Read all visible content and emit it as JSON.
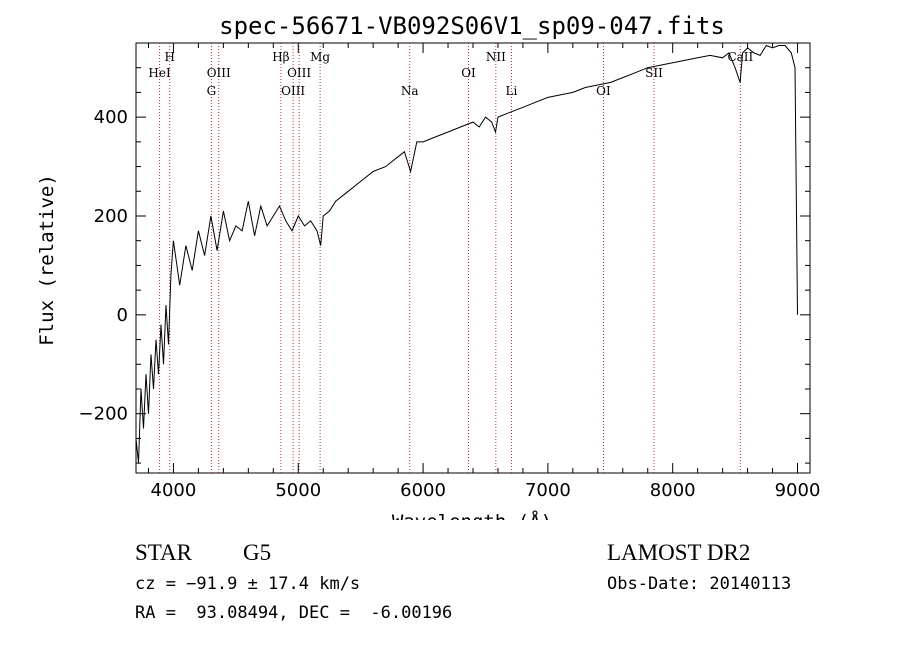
{
  "chart_data": {
    "type": "line",
    "title": "spec-56671-VB092S06V1_sp09-047.fits",
    "xlabel": "Wavelength (Å)",
    "ylabel": "Flux (relative)",
    "xlim": [
      3700,
      9100
    ],
    "ylim": [
      -320,
      550
    ],
    "x_ticks": [
      4000,
      5000,
      6000,
      7000,
      8000,
      9000
    ],
    "y_ticks": [
      -200,
      0,
      200,
      400
    ],
    "x_tick_labels": [
      "4000",
      "5000",
      "6000",
      "7000",
      "8000",
      "9000"
    ],
    "y_tick_labels": [
      "−200",
      "0",
      "200",
      "400"
    ],
    "series": [
      {
        "x": [
          3700,
          3720,
          3740,
          3760,
          3780,
          3800,
          3820,
          3840,
          3860,
          3880,
          3900,
          3920,
          3940,
          3960,
          3980,
          4000,
          4050,
          4100,
          4150,
          4200,
          4250,
          4300,
          4350,
          4400,
          4450,
          4500,
          4550,
          4600,
          4650,
          4700,
          4750,
          4800,
          4850,
          4900,
          4950,
          5000,
          5050,
          5100,
          5150,
          5180,
          5200,
          5250,
          5300,
          5400,
          5500,
          5600,
          5700,
          5800,
          5850,
          5900,
          5950,
          6000,
          6100,
          6200,
          6300,
          6400,
          6450,
          6500,
          6550,
          6580,
          6600,
          6700,
          6800,
          6900,
          7000,
          7100,
          7200,
          7300,
          7400,
          7500,
          7600,
          7700,
          7800,
          7900,
          8000,
          8100,
          8200,
          8300,
          8400,
          8450,
          8500,
          8540,
          8560,
          8600,
          8650,
          8700,
          8750,
          8800,
          8850,
          8900,
          8950,
          8980,
          9000
        ],
        "y": [
          -250,
          -300,
          -150,
          -230,
          -120,
          -200,
          -80,
          -150,
          -50,
          -120,
          -20,
          -100,
          20,
          -60,
          80,
          150,
          60,
          140,
          90,
          170,
          120,
          200,
          130,
          210,
          150,
          180,
          170,
          230,
          160,
          220,
          180,
          200,
          220,
          190,
          170,
          200,
          180,
          190,
          170,
          140,
          200,
          210,
          230,
          250,
          270,
          290,
          300,
          320,
          330,
          290,
          350,
          350,
          360,
          370,
          380,
          390,
          380,
          400,
          390,
          370,
          400,
          410,
          420,
          430,
          440,
          445,
          450,
          460,
          465,
          470,
          480,
          490,
          500,
          505,
          510,
          515,
          520,
          525,
          520,
          530,
          500,
          470,
          530,
          540,
          530,
          525,
          545,
          540,
          545,
          545,
          530,
          500,
          0
        ]
      }
    ],
    "lines": [
      {
        "name": "HeI",
        "x": 3889,
        "row": 2
      },
      {
        "name": "H",
        "x": 3970,
        "row": 1
      },
      {
        "name": "G",
        "x": 4304,
        "row": 3
      },
      {
        "name": "OIII",
        "x": 4363,
        "row": 2
      },
      {
        "name": "Hβ",
        "x": 4861,
        "row": 1
      },
      {
        "name": "OIII",
        "x": 4959,
        "row": 3
      },
      {
        "name": "OIII",
        "x": 5007,
        "row": 2
      },
      {
        "name": "Mg",
        "x": 5175,
        "row": 1
      },
      {
        "name": "Na",
        "x": 5893,
        "row": 3
      },
      {
        "name": "OI",
        "x": 6364,
        "row": 2
      },
      {
        "name": "NII",
        "x": 6583,
        "row": 1
      },
      {
        "name": "Li",
        "x": 6708,
        "row": 3
      },
      {
        "name": "OI",
        "x": 7445,
        "row": 3
      },
      {
        "name": "SII",
        "x": 7850,
        "row": 2
      },
      {
        "name": "CaII",
        "x": 8542,
        "row": 1
      }
    ],
    "grid": false
  },
  "info": {
    "obj_class": "STAR",
    "subclass": "G5",
    "survey": "LAMOST DR2",
    "cz": "cz = −91.9 ± 17.4 km/s",
    "obs_date": "Obs-Date: 20140113",
    "coords": "RA =  93.08494, DEC =  -6.00196"
  }
}
